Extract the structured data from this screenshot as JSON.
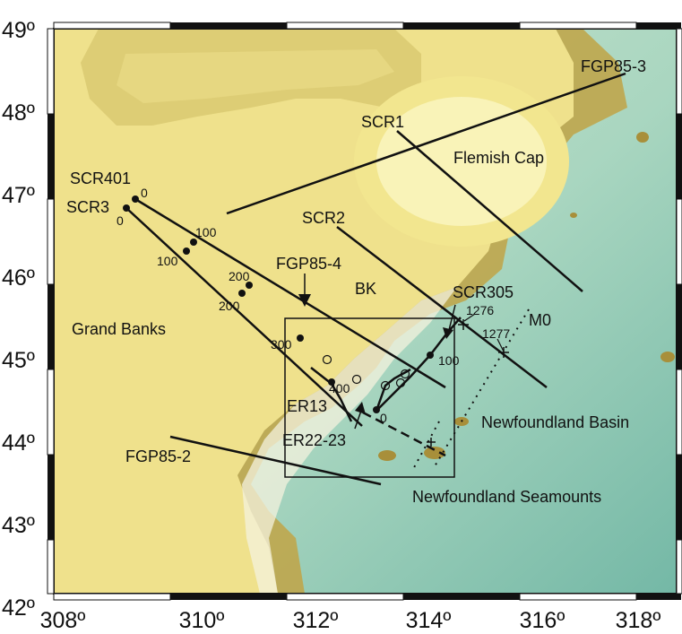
{
  "axes": {
    "x_ticks": [
      "308º",
      "310º",
      "312º",
      "314º",
      "316º",
      "318º"
    ],
    "y_ticks": [
      "49º",
      "48º",
      "47º",
      "46º",
      "45º",
      "44º",
      "43º",
      "42º"
    ]
  },
  "regions": {
    "flemish_cap": "Flemish Cap",
    "grand_banks": "Grand Banks",
    "bk": "BK",
    "nf_basin": "Newfoundland Basin",
    "nf_seamounts": "Newfoundland Seamounts"
  },
  "lines": {
    "fgp85_3": "FGP85-3",
    "fgp85_4": "FGP85-4",
    "fgp85_2": "FGP85-2",
    "scr1": "SCR1",
    "scr2": "SCR2",
    "scr401": "SCR401",
    "scr3": "SCR3",
    "scr305": "SCR305",
    "er13": "ER13",
    "er22": "ER22-23",
    "m0": "M0"
  },
  "km_marks": {
    "k0a": "0",
    "k0b": "0",
    "k100a": "100",
    "k100b": "100",
    "k200a": "200",
    "k200b": "200",
    "k300": "300",
    "k400": "400",
    "k0c": "0",
    "k100c": "100",
    "k1276": "1276",
    "k1277": "1277"
  },
  "colors": {
    "shelf_yellow": "#f3e58e",
    "slope_tan": "#b9a043",
    "deep_teal": "#93c9b1",
    "line": "#111111"
  }
}
